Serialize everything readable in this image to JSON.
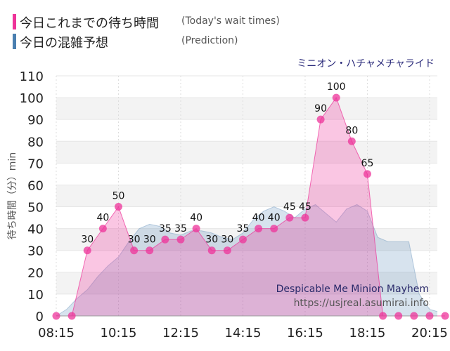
{
  "legend": {
    "today": {
      "label": "今日これまでの待ち時間",
      "sub": "(Today's wait times)",
      "color": "#ee3399"
    },
    "prediction": {
      "label": "今日の混雑予想",
      "sub": "(Prediction)",
      "color": "#4a7fb0"
    }
  },
  "attraction_ja": "ミニオン・ハチャメチャライド",
  "watermark": {
    "title": "Despicable Me Minion Mayhem",
    "url": "https://usjreal.asumirai.info"
  },
  "chart_data": {
    "type": "area",
    "ylabel": "待ち時間（分）min",
    "ylim": [
      0,
      110
    ],
    "yticks": [
      0,
      10,
      20,
      30,
      40,
      50,
      60,
      70,
      80,
      90,
      100,
      110
    ],
    "xticks": [
      "08:15",
      "10:15",
      "12:15",
      "14:15",
      "16:15",
      "18:15",
      "20:15"
    ],
    "xlim": [
      "08:15",
      "20:30"
    ],
    "grid": true,
    "series": [
      {
        "name": "今日これまでの待ち時間",
        "role": "today",
        "x": [
          "08:15",
          "08:45",
          "09:15",
          "09:45",
          "10:15",
          "10:45",
          "11:15",
          "11:45",
          "12:15",
          "12:45",
          "13:15",
          "13:45",
          "14:15",
          "14:45",
          "15:15",
          "15:45",
          "16:15",
          "16:45",
          "17:15",
          "17:45",
          "18:15",
          "18:45",
          "19:15",
          "19:45",
          "20:15",
          "20:45"
        ],
        "values": [
          0,
          0,
          30,
          40,
          50,
          30,
          30,
          35,
          35,
          40,
          30,
          30,
          35,
          40,
          40,
          45,
          45,
          90,
          100,
          80,
          65,
          0,
          0,
          0,
          0,
          0
        ],
        "labels": [
          null,
          null,
          30,
          40,
          50,
          30,
          30,
          35,
          35,
          40,
          30,
          30,
          35,
          40,
          40,
          45,
          45,
          90,
          100,
          80,
          65,
          null,
          null,
          null,
          null,
          null
        ]
      },
      {
        "name": "今日の混雑予想",
        "role": "prediction",
        "x": [
          "08:15",
          "08:35",
          "08:55",
          "09:15",
          "09:35",
          "09:55",
          "10:15",
          "10:35",
          "10:55",
          "11:15",
          "11:35",
          "11:55",
          "12:15",
          "12:35",
          "12:55",
          "13:15",
          "13:35",
          "13:55",
          "14:15",
          "14:35",
          "14:55",
          "15:15",
          "15:35",
          "15:55",
          "16:15",
          "16:35",
          "16:55",
          "17:15",
          "17:35",
          "17:55",
          "18:15",
          "18:35",
          "18:55",
          "19:15",
          "19:35",
          "19:55",
          "20:15",
          "20:30"
        ],
        "values": [
          0,
          3,
          8,
          12,
          18,
          23,
          27,
          34,
          40,
          42,
          41,
          38,
          37,
          39,
          39,
          38,
          36,
          35,
          38,
          44,
          48,
          50,
          48,
          45,
          49,
          51,
          47,
          43,
          49,
          51,
          48,
          36,
          34,
          34,
          34,
          10,
          3,
          2
        ]
      }
    ]
  }
}
